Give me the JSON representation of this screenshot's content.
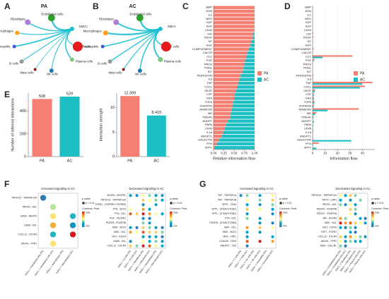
{
  "chart_data": [
    {
      "type": "network",
      "panel": "A",
      "title": "PA",
      "categories": [
        "Fibroblasts",
        "Endothelial cells",
        "SMCs",
        "T cells",
        "Plasma cells",
        "NK cells",
        "Mast cells",
        "B cells",
        "Neutrophils",
        "Macrophages"
      ],
      "values": [
        2,
        3,
        null,
        1.5,
        2,
        1.5,
        1,
        1.5,
        2.5,
        1.5
      ],
      "node_sizes": [
        4,
        5,
        3,
        7,
        3,
        3,
        2,
        3,
        2.5,
        3
      ],
      "node_colors": [
        "#b07cd8",
        "#2ca02c",
        "#17becf",
        "#e41a1c",
        "#7fc97f",
        "#1f78b4",
        "#8b1a1a",
        "#999999",
        "#3b5bdb",
        "#ff9f1c"
      ]
    },
    {
      "type": "network",
      "panel": "B",
      "title": "AC",
      "categories": [
        "Fibroblasts",
        "Endothelial cells",
        "SMCs",
        "T cells",
        "Plasma cells",
        "NK cells",
        "Mast cells",
        "B cells",
        "Neutrophils",
        "Macrophages"
      ],
      "values": [
        2.5,
        3,
        null,
        2,
        2.5,
        2,
        1.5,
        2,
        2,
        3
      ],
      "node_sizes": [
        4,
        5,
        3,
        7,
        3.5,
        3,
        2,
        3,
        2.5,
        3.5
      ],
      "node_colors": [
        "#b07cd8",
        "#2ca02c",
        "#17becf",
        "#e41a1c",
        "#7fc97f",
        "#1f78b4",
        "#8b1a1a",
        "#999999",
        "#3b5bdb",
        "#ff9f1c"
      ]
    },
    {
      "type": "bar",
      "panel": "C",
      "orientation": "horizontal",
      "stacked": true,
      "xlabel": "Relative information flow",
      "categories": [
        "BMP",
        "EDN",
        "IL1",
        "NRG",
        "GDF",
        "EGF",
        "CD40",
        "IGF",
        "PDGF",
        "NT",
        "HGF",
        "COMPLEMENT",
        "CALCR",
        "CCL",
        "FGF",
        "PROS",
        "TRAIL",
        "KIT",
        "PERIOSTIN",
        "IL6",
        "TNF",
        "CXCL",
        "VEGF",
        "CSF",
        "GAS",
        "TGFb",
        "VISFATIN",
        "ANNEXIN",
        "MK",
        "TWEAK",
        "ANGPT",
        "PARs",
        "CD45",
        "IL16",
        "ANGPTL",
        "GALECTIN",
        "PTN",
        "SPP1"
      ],
      "category_colors": [
        "#f47f72",
        "#f47f72",
        "#f47f72",
        "#f47f72",
        "#f47f72",
        "#f47f72",
        "#f47f72",
        "#222222",
        "#222222",
        "#f47f72",
        "#f47f72",
        "#222222",
        "#f47f72",
        "#222222",
        "#222222",
        "#f47f72",
        "#f47f72",
        "#f47f72",
        "#222222",
        "#f47f72",
        "#f47f72",
        "#222222",
        "#222222",
        "#222222",
        "#222222",
        "#222222",
        "#222222",
        "#222222",
        "#222222",
        "#222222",
        "#1bbfc4",
        "#1bbfc4",
        "#1bbfc4",
        "#222222",
        "#222222",
        "#1bbfc4",
        "#222222",
        "#1bbfc4"
      ],
      "series": [
        {
          "name": "PA",
          "color": "#f47f72",
          "values": [
            1,
            1,
            1,
            1,
            1,
            1,
            1,
            0.97,
            0.95,
            0.92,
            0.9,
            0.86,
            0.83,
            0.8,
            0.77,
            0.75,
            0.73,
            0.7,
            0.66,
            0.63,
            0.6,
            0.57,
            0.54,
            0.52,
            0.5,
            0.48,
            0.46,
            0.44,
            0.42,
            0.4,
            0.35,
            0.3,
            0.27,
            0.23,
            0.2,
            0.14,
            0.08,
            0.02
          ]
        },
        {
          "name": "AC",
          "color": "#1bbfc4",
          "values": [
            0,
            0,
            0,
            0,
            0,
            0,
            0,
            0.03,
            0.05,
            0.08,
            0.1,
            0.14,
            0.17,
            0.2,
            0.23,
            0.25,
            0.27,
            0.3,
            0.34,
            0.37,
            0.4,
            0.43,
            0.46,
            0.48,
            0.5,
            0.52,
            0.54,
            0.56,
            0.58,
            0.6,
            0.65,
            0.7,
            0.73,
            0.77,
            0.8,
            0.86,
            0.92,
            0.98
          ]
        }
      ],
      "xlim": [
        0,
        1
      ],
      "xticks": [
        {
          "value": 0,
          "label": "0.00"
        },
        {
          "value": 0.25,
          "label": "0.25"
        },
        {
          "value": 0.5,
          "label": "0.50"
        },
        {
          "value": 0.75,
          "label": "0.75"
        },
        {
          "value": 1,
          "label": "1.00"
        }
      ]
    },
    {
      "type": "bar",
      "panel": "D",
      "orientation": "horizontal",
      "stacked": false,
      "xlabel": "Information flow",
      "categories": [
        "BMP",
        "EDN",
        "IL1",
        "NRG",
        "GDF",
        "EGF",
        "CD40",
        "IGF",
        "PDGF",
        "NT",
        "HGF",
        "COMPLEMENT",
        "CALCR",
        "CCL",
        "FGF",
        "PROS",
        "TRAIL",
        "KIT",
        "PERIOSTIN",
        "IL6",
        "TNF",
        "CXCL",
        "VEGF",
        "CSF",
        "GAS",
        "TGFb",
        "VISFATIN",
        "ANNEXIN",
        "MK",
        "TWEAK",
        "ANGPT",
        "PARs",
        "CD45",
        "IL16",
        "ANGPTL",
        "GALECTIN",
        "PTN",
        "SPP1"
      ],
      "category_colors": [
        "#f47f72",
        "#f47f72",
        "#f47f72",
        "#f47f72",
        "#f47f72",
        "#f47f72",
        "#f47f72",
        "#222222",
        "#222222",
        "#f47f72",
        "#f47f72",
        "#222222",
        "#f47f72",
        "#222222",
        "#222222",
        "#f47f72",
        "#f47f72",
        "#f47f72",
        "#222222",
        "#f47f72",
        "#f47f72",
        "#222222",
        "#222222",
        "#222222",
        "#222222",
        "#222222",
        "#222222",
        "#222222",
        "#222222",
        "#222222",
        "#1bbfc4",
        "#1bbfc4",
        "#1bbfc4",
        "#222222",
        "#222222",
        "#1bbfc4",
        "#222222",
        "#1bbfc4"
      ],
      "series": [
        {
          "name": "PA",
          "color": "#f47f72",
          "values": [
            0.3,
            0.2,
            0.2,
            0.3,
            0.2,
            0.3,
            0.2,
            0.5,
            0.6,
            0.2,
            0.3,
            0.8,
            0.2,
            32,
            1.5,
            0.3,
            0.3,
            0.2,
            0.6,
            0.4,
            48,
            42,
            2,
            1,
            1,
            1.5,
            1,
            37,
            3,
            0.8,
            0.2,
            0.1,
            0.1,
            0.5,
            0.3,
            0.5,
            5,
            0.05
          ]
        },
        {
          "name": "AC",
          "color": "#1bbfc4",
          "values": [
            0,
            0,
            0,
            0,
            0,
            0,
            0,
            0.02,
            0.03,
            0,
            0,
            0.1,
            0,
            8,
            0.4,
            0,
            0,
            0,
            0.3,
            0,
            40,
            38,
            1.7,
            0.9,
            1,
            1.4,
            0.9,
            12,
            2,
            0.5,
            1,
            0.5,
            0.4,
            0.2,
            0.2,
            31,
            0.5,
            3
          ]
        }
      ],
      "xlim": [
        0,
        50
      ],
      "xticks": [
        0,
        10,
        20,
        30,
        40
      ]
    },
    {
      "type": "column",
      "panel": "E",
      "ylabel": "Number of inferred interactions",
      "categories": [
        "PA",
        "AC"
      ],
      "values": [
        508,
        529
      ],
      "colors": [
        "#f47f72",
        "#1bbfc4"
      ],
      "ylim": [
        0,
        560
      ],
      "yticks": [
        0,
        200,
        400
      ]
    },
    {
      "type": "column",
      "ylabel": "Interaction strength",
      "categories": [
        "PA",
        "AC"
      ],
      "values": [
        12.399,
        8.415
      ],
      "colors": [
        "#f47f72",
        "#1bbfc4"
      ],
      "ylim": [
        0,
        13
      ],
      "yticks": [
        0,
        5,
        10
      ]
    },
    {
      "type": "dotplot",
      "panel": "F",
      "title": "Increased signaling in AC",
      "rows": [
        "TNFSF12 - TNFRSF12A",
        "PROS1 - AXL",
        "GAS6 - MERTK",
        "GAS6 - AXL",
        "CXCL12 - CXCR4",
        "ANXA1 - FPR1"
      ],
      "columns": [
        "SMCs -> Endothelial cells (PA)",
        "SMCs -> Endothelial cells (AC)",
        "SMCs -> Macrophages (PA)",
        "SMCs -> Macrophages (AC)"
      ],
      "column_label_colors": [
        "#f47f72",
        "#1bbfc4",
        "#f47f72",
        "#1bbfc4"
      ],
      "values": [
        [
          0.2,
          null,
          null,
          null
        ],
        [
          null,
          0.5,
          null,
          null
        ],
        [
          null,
          0.6,
          null,
          0.4
        ],
        [
          null,
          0.7,
          null,
          0.3
        ],
        [
          null,
          0.4,
          null,
          0.9
        ],
        [
          null,
          0.6,
          null,
          null
        ]
      ],
      "colorbar_title": "Commun. Prob.",
      "colorbar_labels": [
        "max",
        "min"
      ],
      "color_scale": [
        "#2c7bb6",
        "#00a6ca",
        "#ffff8c",
        "#f29e2e",
        "#d7191c"
      ],
      "size_title": "p-value",
      "size_label": "p < 0.01"
    },
    {
      "type": "dotplot",
      "title": "Decreased signaling in AC",
      "rows": [
        "VEGFA - VEGFR1",
        "TNFSF12 - TNFRSF12A",
        "TGFB1 - (TGFBR1+TGFBR2)",
        "PTN - SDC3",
        "PTN - NCL",
        "PGF - VEGFR1",
        "PDGFB - PDGFRB",
        "MDK - SDC4",
        "MDK - NCL",
        "IGF1 - IGF1R",
        "GAS6 - AXL",
        "CXCL12 - CXCR4"
      ],
      "columns": [
        "SMCs -> B cells (PA)",
        "SMCs -> B cells (AC)",
        "SMCs -> Fibroblasts (PA)",
        "SMCs -> Fibroblasts (AC)",
        "SMCs -> Macrophages (PA)",
        "SMCs -> Macrophages (AC)"
      ],
      "column_label_colors": [
        "#f47f72",
        "#1bbfc4",
        "#f47f72",
        "#1bbfc4",
        "#f47f72",
        "#1bbfc4"
      ],
      "values": [
        [
          0.3,
          0.2,
          0.5,
          0.4,
          0.3,
          0.2
        ],
        [
          null,
          null,
          0.6,
          0.5,
          0.4,
          0.3
        ],
        [
          null,
          null,
          0.2,
          null,
          0.3,
          null
        ],
        [
          0.5,
          null,
          0.7,
          0.3,
          null,
          null
        ],
        [
          0.8,
          0.6,
          0.9,
          0.7,
          0.5,
          0.3
        ],
        [
          null,
          null,
          0.2,
          0.1,
          null,
          null
        ],
        [
          null,
          null,
          0.4,
          0.2,
          null,
          null
        ],
        [
          0.3,
          0.1,
          0.6,
          0.4,
          0.2,
          0.1
        ],
        [
          0.7,
          0.5,
          0.8,
          0.6,
          0.6,
          0.4
        ],
        [
          null,
          null,
          0.3,
          0.2,
          0.3,
          0.1
        ],
        [
          0.2,
          null,
          0.5,
          0.3,
          0.4,
          0.2
        ],
        [
          0.6,
          0.4,
          0.9,
          0.8,
          0.5,
          0.3
        ]
      ],
      "colorbar_title": "Commun. Prob.",
      "colorbar_labels": [
        "max",
        "min"
      ],
      "color_scale": [
        "#2c7bb6",
        "#00a6ca",
        "#ffff8c",
        "#f29e2e",
        "#d7191c"
      ],
      "size_title": "p-value",
      "size_label": "p < 0.01"
    },
    {
      "type": "dotplot",
      "panel": "G",
      "title": "Increased signaling in AC",
      "rows": [
        "TNF - TNFRSF1A",
        "TNF - TNFRSF1B",
        "SPP1 - CD44",
        "SPP1 - (ITGAV+ITGB1)",
        "SPP1 - (ITGA5+ITGB1)",
        "PTN - NCL",
        "PDGFB - (ITGAV+ITGB3)",
        "MDK - NCL",
        "MDK - SDC4",
        "MDK - LRP1",
        "LGALS9 - CD44",
        "ANGPT1 - TEK"
      ],
      "columns": [
        "SMCs -> T cells (PA)",
        "SMCs -> T cells (AC)",
        "SMCs -> NK cells (PA)",
        "SMCs -> NK cells (AC)",
        "SMCs -> Neutrophils (PA)",
        "SMCs -> Neutrophils (AC)"
      ],
      "column_label_colors": [
        "#f47f72",
        "#1bbfc4",
        "#f47f72",
        "#1bbfc4",
        "#f47f72",
        "#1bbfc4"
      ],
      "values": [
        [
          0.2,
          0.4,
          null,
          0.3,
          null,
          0.5
        ],
        [
          null,
          0.5,
          null,
          0.4,
          null,
          0.6
        ],
        [
          null,
          0.3,
          null,
          0.2,
          null,
          0.4
        ],
        [
          null,
          0.6,
          null,
          0.5,
          null,
          0.3
        ],
        [
          null,
          0.2,
          null,
          null,
          null,
          0.2
        ],
        [
          null,
          0.4,
          null,
          0.3,
          null,
          null
        ],
        [
          null,
          null,
          null,
          0.2,
          null,
          0.1
        ],
        [
          null,
          0.7,
          null,
          0.6,
          null,
          0.5
        ],
        [
          null,
          0.3,
          null,
          0.2,
          null,
          null
        ],
        [
          null,
          0.2,
          null,
          null,
          null,
          0.3
        ],
        [
          null,
          0.8,
          null,
          0.9,
          null,
          0.7
        ],
        [
          null,
          0.1,
          null,
          null,
          null,
          null
        ]
      ],
      "colorbar_title": "Commun. Prob.",
      "colorbar_labels": [
        "max",
        "min"
      ],
      "color_scale": [
        "#2c7bb6",
        "#00a6ca",
        "#ffff8c",
        "#f29e2e",
        "#d7191c"
      ],
      "size_title": "p-value",
      "size_label": "p < 0.01"
    },
    {
      "type": "dotplot",
      "title": "Decreased signaling in AC",
      "rows": [
        "TNFSF12 - TNFRSF12A",
        "RETN - CAP1",
        "PROS1 - AXL",
        "PDGFD - PDGFRB",
        "PDGFC - PDGFRA",
        "MIF - ACKR3",
        "MDK - NCL",
        "IGF1 - IGF1R",
        "FGF7 - FGFR1",
        "CXCL12 - CXCR4",
        "ANXA1 - FPR1",
        "ADM - CALCRL"
      ],
      "columns": [
        "SMCs -> Endothelial cells (PA)",
        "SMCs -> Endothelial cells (AC)",
        "SMCs -> Fibroblasts (PA)",
        "SMCs -> Fibroblasts (AC)",
        "SMCs -> Plasma cells (PA)",
        "SMCs -> Plasma cells (AC)"
      ],
      "column_label_colors": [
        "#f47f72",
        "#1bbfc4",
        "#f47f72",
        "#1bbfc4",
        "#f47f72",
        "#1bbfc4"
      ],
      "values": [
        [
          0.5,
          0.3,
          0.6,
          0.4,
          null,
          null
        ],
        [
          0.3,
          null,
          0.2,
          null,
          0.4,
          null
        ],
        [
          0.4,
          0.2,
          0.5,
          0.3,
          null,
          null
        ],
        [
          null,
          null,
          0.6,
          0.4,
          null,
          null
        ],
        [
          null,
          null,
          0.5,
          0.2,
          null,
          null
        ],
        [
          0.7,
          0.4,
          null,
          null,
          0.3,
          0.1
        ],
        [
          0.9,
          0.7,
          0.8,
          0.6,
          0.5,
          0.3
        ],
        [
          0.3,
          0.1,
          0.4,
          0.2,
          null,
          null
        ],
        [
          null,
          null,
          0.3,
          0.1,
          null,
          null
        ],
        [
          0.6,
          0.3,
          0.7,
          0.5,
          0.4,
          0.2
        ],
        [
          0.5,
          0.2,
          0.4,
          0.3,
          0.3,
          null
        ],
        [
          0.4,
          0.1,
          null,
          null,
          null,
          null
        ]
      ],
      "colorbar_title": "Commun. Prob.",
      "colorbar_labels": [
        "max",
        "min"
      ],
      "color_scale": [
        "#2c7bb6",
        "#00a6ca",
        "#ffff8c",
        "#f29e2e",
        "#d7191c"
      ],
      "size_title": "p-value",
      "size_label": "p < 0.01"
    }
  ]
}
